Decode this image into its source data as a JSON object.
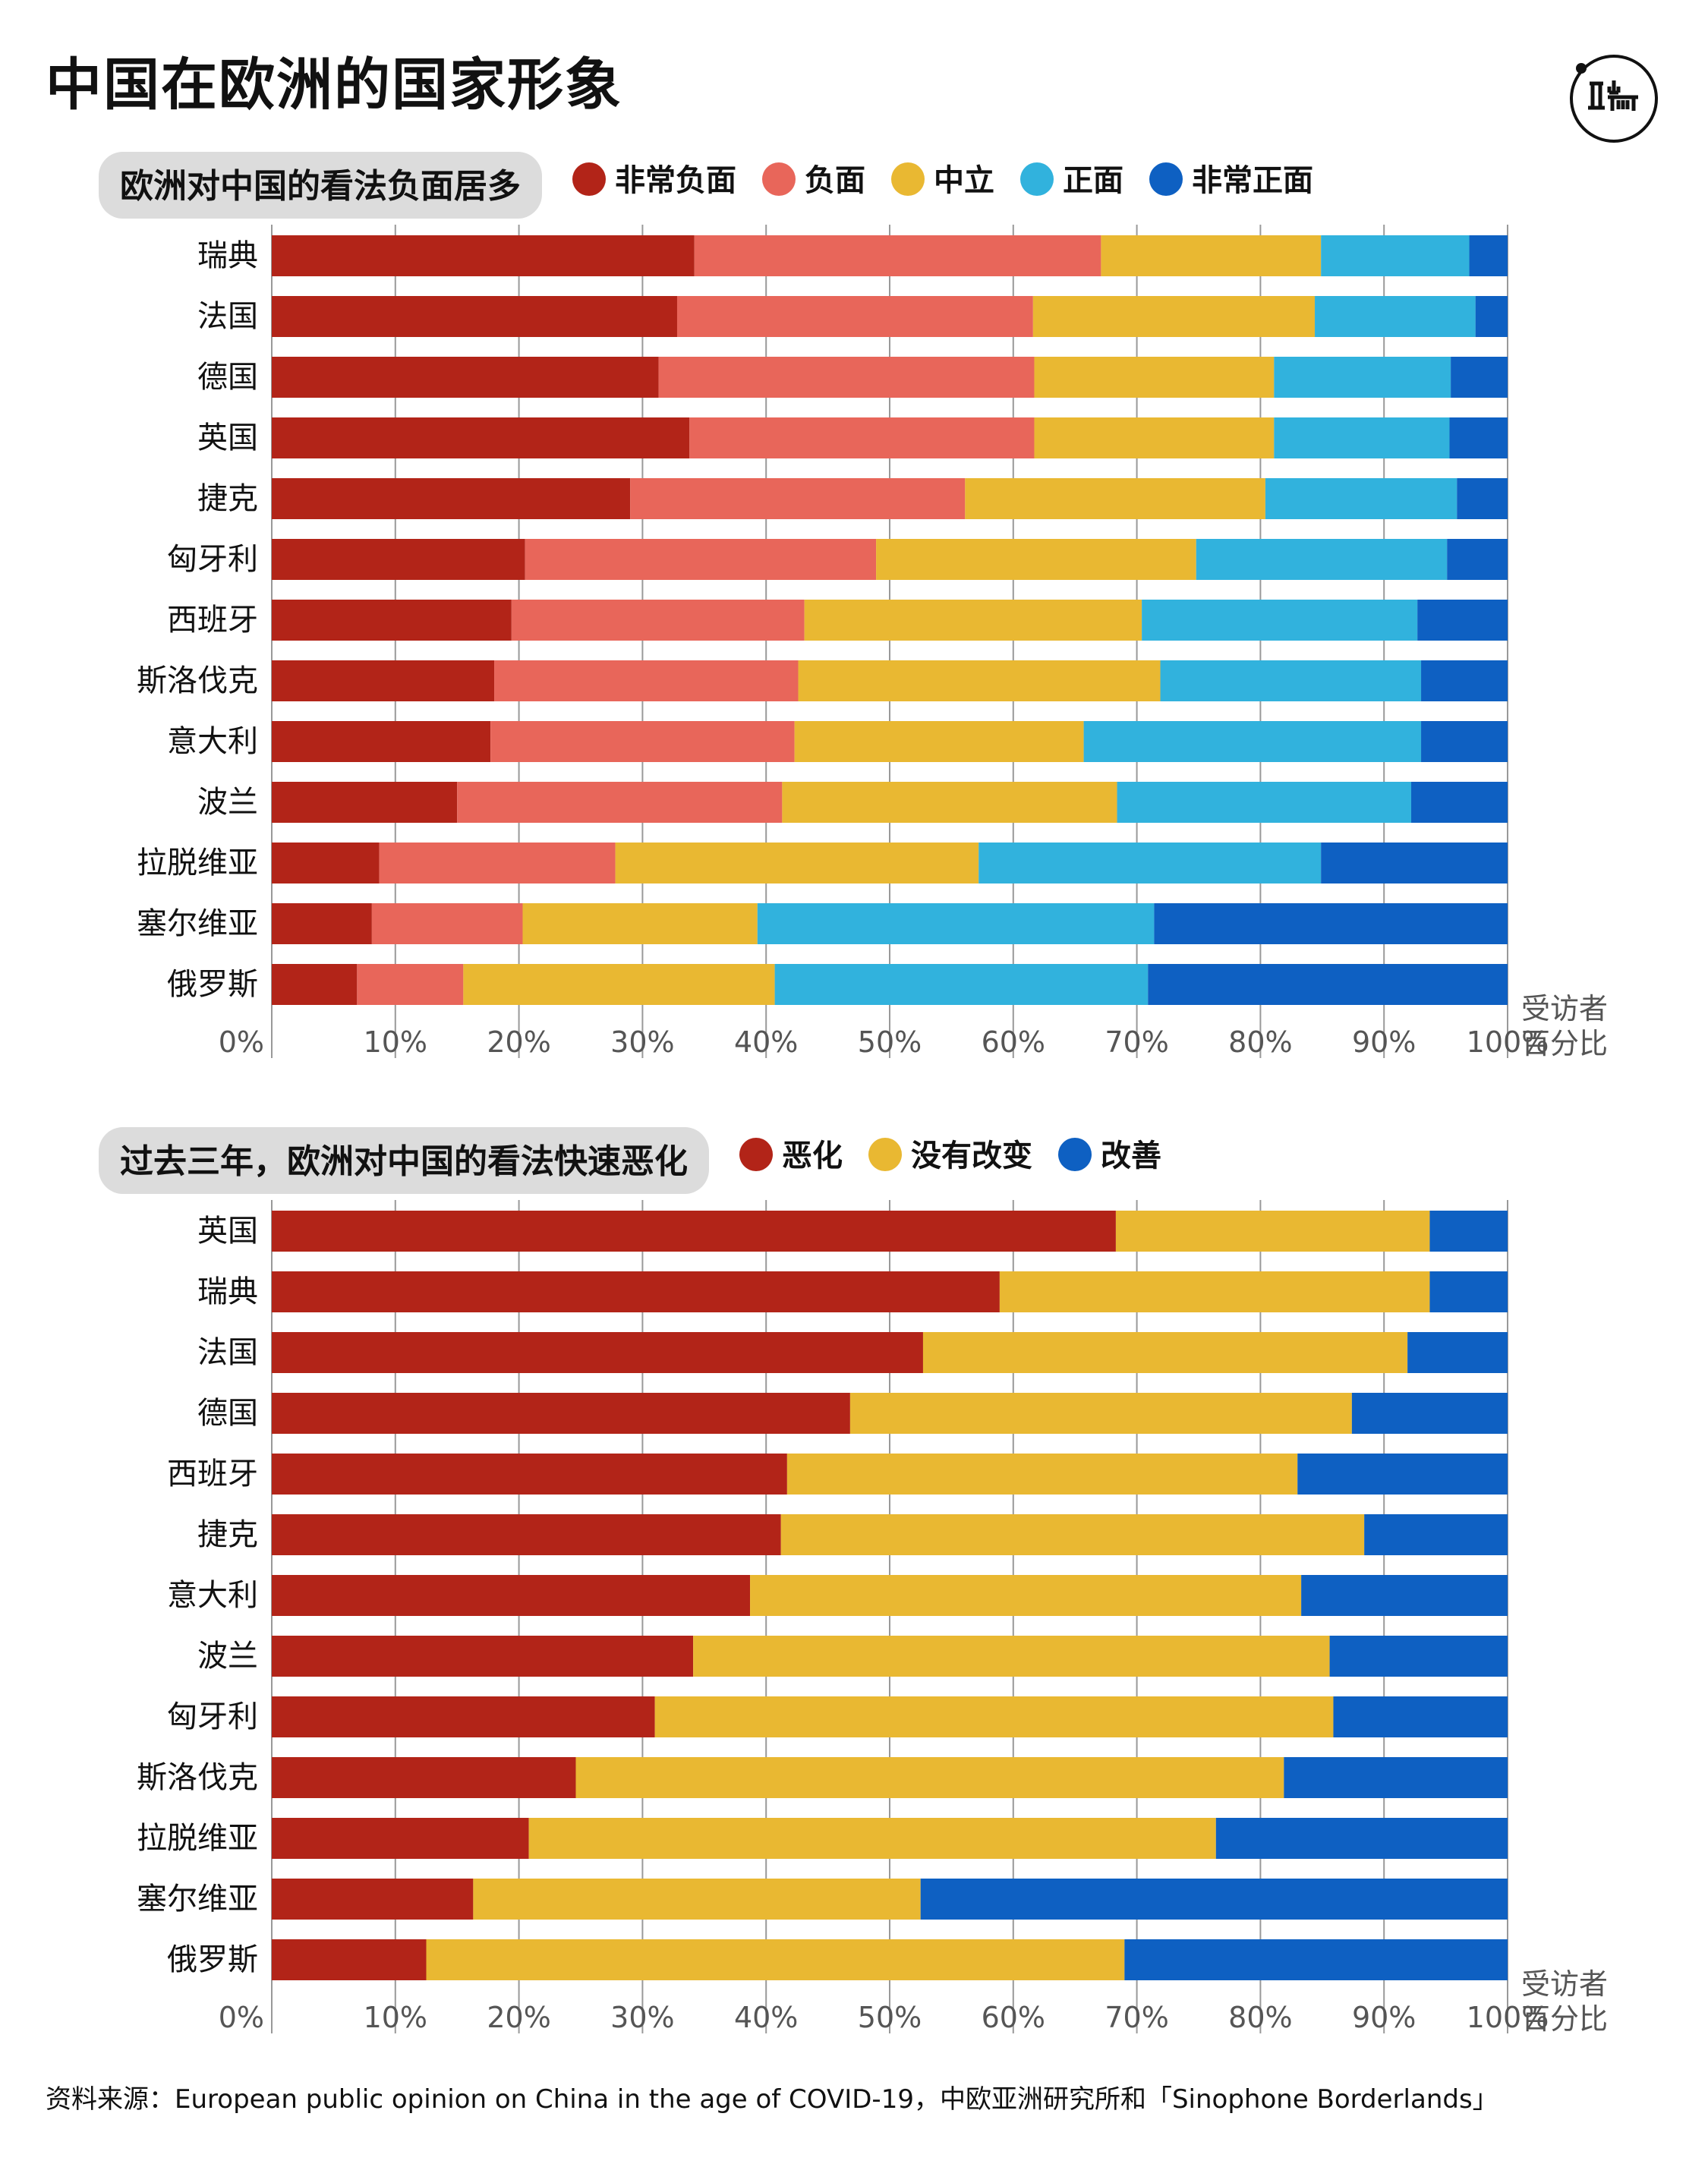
{
  "page": {
    "title": "中国在欧洲的国家形象",
    "source": "资料来源：European public opinion on China in the age of COVID-19，中欧亚洲研究所和「Sinophone Borderlands」",
    "logo_glyphs": "Ⅱ 丨 端"
  },
  "chart_data": [
    {
      "type": "bar",
      "orientation": "horizontal",
      "stacked": true,
      "title": "欧洲对中国的看法负面居多",
      "unit_label": "受访者\n百分比",
      "xlim": [
        0,
        100
      ],
      "ticks": [
        "0%",
        "10%",
        "20%",
        "30%",
        "40%",
        "50%",
        "60%",
        "70%",
        "80%",
        "90%",
        "100%"
      ],
      "grid": true,
      "legend_position": "top",
      "categories": [
        "瑞典",
        "法国",
        "德国",
        "英国",
        "捷克",
        "匈牙利",
        "西班牙",
        "斯洛伐克",
        "意大利",
        "波兰",
        "拉脱维亚",
        "塞尔维亚",
        "俄罗斯"
      ],
      "series": [
        {
          "name": "非常负面",
          "color": "#b22418",
          "values": [
            34.2,
            32.8,
            31.3,
            33.8,
            29.0,
            20.5,
            19.4,
            18.0,
            17.7,
            15.0,
            8.7,
            8.1,
            6.9
          ]
        },
        {
          "name": "负面",
          "color": "#e8665a",
          "values": [
            32.9,
            28.8,
            30.4,
            27.9,
            27.1,
            28.4,
            23.7,
            24.6,
            24.6,
            26.3,
            19.1,
            12.2,
            8.6
          ]
        },
        {
          "name": "中立",
          "color": "#e9b832",
          "values": [
            17.8,
            22.8,
            19.4,
            19.4,
            24.3,
            25.9,
            27.3,
            29.3,
            23.4,
            27.1,
            29.4,
            19.0,
            25.2
          ]
        },
        {
          "name": "正面",
          "color": "#31b2dd",
          "values": [
            12.0,
            13.0,
            14.3,
            14.2,
            15.5,
            20.3,
            22.3,
            21.1,
            27.3,
            23.8,
            27.7,
            32.1,
            30.2
          ]
        },
        {
          "name": "非常正面",
          "color": "#0e60c2",
          "values": [
            3.1,
            2.6,
            4.6,
            4.7,
            4.1,
            4.9,
            7.3,
            7.0,
            7.0,
            7.8,
            15.1,
            28.6,
            29.1
          ]
        }
      ]
    },
    {
      "type": "bar",
      "orientation": "horizontal",
      "stacked": true,
      "title": "过去三年，欧洲对中国的看法快速恶化",
      "unit_label": "受访者\n百分比",
      "xlim": [
        0,
        100
      ],
      "ticks": [
        "0%",
        "10%",
        "20%",
        "30%",
        "40%",
        "50%",
        "60%",
        "70%",
        "80%",
        "90%",
        "100%"
      ],
      "grid": true,
      "legend_position": "top",
      "categories": [
        "英国",
        "瑞典",
        "法国",
        "德国",
        "西班牙",
        "捷克",
        "意大利",
        "波兰",
        "匈牙利",
        "斯洛伐克",
        "拉脱维亚",
        "塞尔维亚",
        "俄罗斯"
      ],
      "series": [
        {
          "name": "恶化",
          "color": "#b22418",
          "values": [
            68.3,
            58.9,
            52.7,
            46.8,
            41.7,
            41.2,
            38.7,
            34.1,
            31.0,
            24.6,
            20.8,
            16.3,
            12.5
          ]
        },
        {
          "name": "没有改变",
          "color": "#e9b832",
          "values": [
            25.4,
            34.8,
            39.2,
            40.6,
            41.3,
            47.2,
            44.6,
            51.5,
            54.9,
            57.3,
            55.6,
            36.2,
            56.5
          ]
        },
        {
          "name": "改善",
          "color": "#0e60c2",
          "values": [
            6.3,
            6.3,
            8.1,
            12.6,
            17.0,
            11.6,
            16.7,
            14.4,
            14.1,
            18.1,
            23.6,
            47.5,
            31.0
          ]
        }
      ]
    }
  ]
}
